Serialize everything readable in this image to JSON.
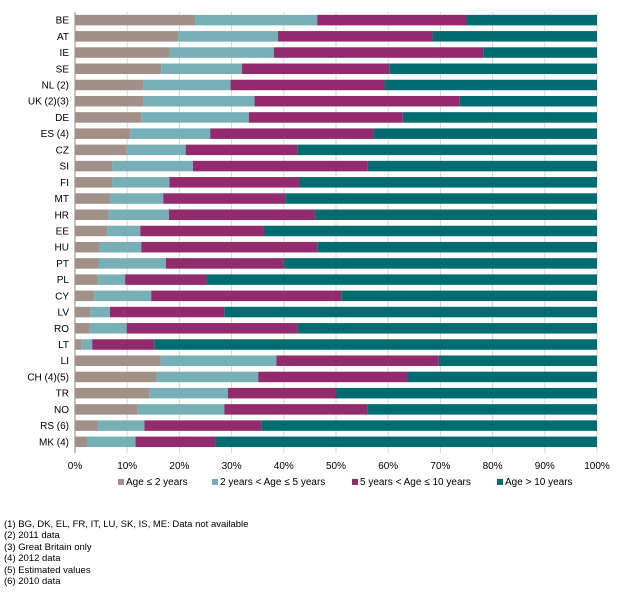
{
  "chart_data": {
    "type": "bar",
    "orientation": "horizontal",
    "stacked": "percent",
    "categories": [
      "BE",
      "AT",
      "IE",
      "SE",
      "NL (2)",
      "UK (2)(3)",
      "DE",
      "ES (4)",
      "CZ",
      "SI",
      "FI",
      "MT",
      "HR",
      "EE",
      "HU",
      "PT",
      "PL",
      "CY",
      "LV",
      "RO",
      "LT",
      "LI",
      "CH  (4)(5)",
      "TR",
      "NO",
      "RS (6)",
      "MK (4)"
    ],
    "series": [
      {
        "name": "Age ≤ 2 years",
        "color": "#a09088",
        "values": [
          23.0,
          19.8,
          18.1,
          16.5,
          13.1,
          13.1,
          12.7,
          10.6,
          9.9,
          7.1,
          7.1,
          6.7,
          6.4,
          6.2,
          4.7,
          4.5,
          4.3,
          3.7,
          3.0,
          2.8,
          1.3,
          16.4,
          15.6,
          14.3,
          12.0,
          4.4,
          2.3
        ]
      },
      {
        "name": "2 years < Age ≤ 5 years",
        "color": "#76b0b6",
        "values": [
          23.4,
          19.1,
          20.0,
          15.5,
          16.7,
          21.3,
          20.6,
          15.3,
          11.3,
          15.5,
          11.0,
          10.2,
          11.6,
          6.3,
          8.0,
          12.9,
          5.3,
          10.9,
          3.7,
          7.1,
          2.0,
          22.2,
          19.5,
          15.0,
          16.6,
          8.9,
          9.3
        ]
      },
      {
        "name": "5 years < Age ≤ 10 years",
        "color": "#922a6e",
        "values": [
          28.6,
          29.6,
          40.1,
          28.2,
          29.5,
          39.3,
          29.5,
          31.3,
          21.4,
          33.5,
          24.9,
          23.4,
          28.0,
          23.7,
          33.7,
          22.6,
          15.6,
          36.4,
          21.9,
          32.8,
          11.9,
          31.1,
          28.6,
          20.7,
          27.4,
          22.4,
          15.3
        ]
      },
      {
        "name": "Age > 10 years",
        "color": "#006c70",
        "values": [
          25.0,
          31.5,
          21.8,
          39.8,
          40.7,
          26.3,
          37.2,
          42.8,
          57.4,
          43.9,
          57.0,
          59.7,
          54.0,
          63.8,
          53.6,
          60.0,
          74.8,
          49.0,
          71.4,
          57.3,
          84.8,
          30.3,
          36.3,
          50.0,
          44.0,
          64.3,
          73.1
        ]
      }
    ],
    "xlim": [
      0,
      100
    ],
    "xticks": [
      "0%",
      "10%",
      "20%",
      "30%",
      "40%",
      "50%",
      "60%",
      "70%",
      "80%",
      "90%",
      "100%"
    ],
    "grid": "vertical",
    "legend": "bottom",
    "title": "",
    "xlabel": "",
    "ylabel": ""
  },
  "footnotes": [
    "(1) BG, DK, EL, FR, IT, LU, SK, IS, ME: Data not available",
    "(2) 2011 data",
    "(3) Great Britain only",
    "(4) 2012 data",
    "(5) Estimated values",
    "(6) 2010 data"
  ]
}
